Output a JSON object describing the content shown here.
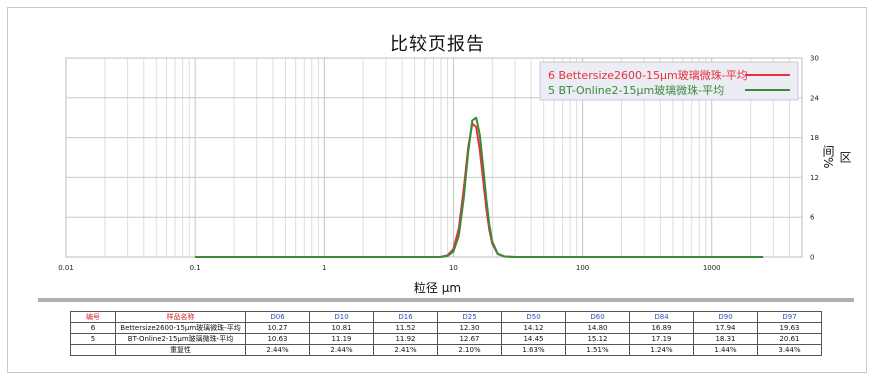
{
  "chart_data": {
    "type": "line",
    "title": "比较页报告",
    "xlabel": "粒径 μm",
    "ylabel": "区间%",
    "x_scale": "log",
    "xlim": [
      0.01,
      5000
    ],
    "ylim": [
      0,
      30
    ],
    "x_tick_labels": [
      "0.01",
      "0.1",
      "1",
      "10",
      "100",
      "1000"
    ],
    "x_ticks": [
      0.01,
      0.1,
      1,
      10,
      100,
      1000
    ],
    "y_ticks": [
      0,
      6,
      12,
      18,
      24,
      30
    ],
    "grid": true,
    "legend_position": "top-right",
    "series": [
      {
        "name": "6  Bettersize2600-15μm玻璃微珠-平均",
        "color": "#e8303a",
        "x": [
          0.1,
          6,
          8,
          9,
          10,
          11,
          12,
          13,
          14,
          15,
          16,
          17,
          18,
          19,
          20,
          22,
          25,
          30,
          40,
          50,
          100,
          1000,
          2500
        ],
        "y": [
          0,
          0,
          0.02,
          0.25,
          1.2,
          4.3,
          10.2,
          16.5,
          20.1,
          19.6,
          16.1,
          11.5,
          7.2,
          4.0,
          2.0,
          0.45,
          0.06,
          0,
          0,
          0,
          0,
          0,
          0
        ]
      },
      {
        "name": "5  BT-Online2-15μm玻璃微珠-平均",
        "color": "#3a8a3a",
        "x": [
          0.1,
          6,
          8,
          9,
          10,
          11,
          12,
          13,
          14,
          15,
          16,
          17,
          18,
          19,
          20,
          22,
          25,
          30,
          40,
          50,
          100,
          1000,
          2500
        ],
        "y": [
          0,
          0,
          0.01,
          0.15,
          0.8,
          3.2,
          8.8,
          15.8,
          20.6,
          21.0,
          18.4,
          13.6,
          8.6,
          4.8,
          2.3,
          0.5,
          0.07,
          0,
          0,
          0,
          0,
          0,
          0
        ]
      }
    ]
  },
  "table": {
    "headers": [
      "编号",
      "样品名称",
      "D06",
      "D10",
      "D16",
      "D25",
      "D50",
      "D60",
      "D84",
      "D90",
      "D97"
    ],
    "rows": [
      [
        "6",
        "Bettersize2600-15μm玻璃微珠-平均",
        "10.27",
        "10.81",
        "11.52",
        "12.30",
        "14.12",
        "14.80",
        "16.89",
        "17.94",
        "19.63"
      ],
      [
        "5",
        "BT-Online2-15μm玻璃微珠-平均",
        "10.63",
        "11.19",
        "11.92",
        "12.67",
        "14.45",
        "15.12",
        "17.19",
        "18.31",
        "20.61"
      ],
      [
        "",
        "重复性",
        "2.44%",
        "2.44%",
        "2.41%",
        "2.10%",
        "1.63%",
        "1.51%",
        "1.24%",
        "1.44%",
        "3.44%"
      ]
    ]
  }
}
